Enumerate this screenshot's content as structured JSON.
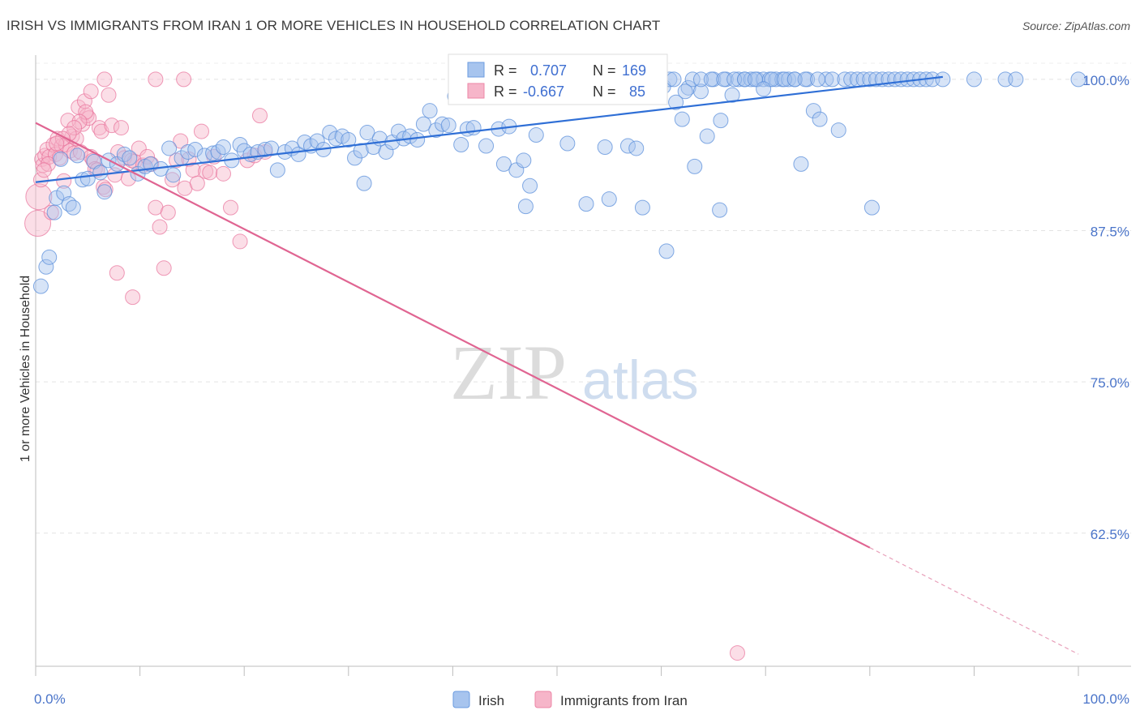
{
  "header": {
    "title": "IRISH VS IMMIGRANTS FROM IRAN 1 OR MORE VEHICLES IN HOUSEHOLD CORRELATION CHART",
    "source": "Source: ZipAtlas.com"
  },
  "watermark": {
    "zip": "ZIP",
    "atlas": "atlas"
  },
  "legend": {
    "rows": [
      {
        "r_label": "R =",
        "r_value": "0.707",
        "n_label": "N =",
        "n_value": "169",
        "color": "#a7c4ee",
        "stroke": "#6b9be0"
      },
      {
        "r_label": "R =",
        "r_value": "-0.667",
        "n_label": "N =",
        "n_value": "85",
        "color": "#f6b5c9",
        "stroke": "#ec86a6"
      }
    ]
  },
  "bottom_legend": {
    "items": [
      {
        "label": "Irish",
        "color": "#a7c4ee"
      },
      {
        "label": "Immigrants from Iran",
        "color": "#f6b5c9"
      }
    ]
  },
  "chart_data": {
    "type": "scatter",
    "ylabel": "1 or more Vehicles in Household",
    "x_tick_labels": [
      "0.0%",
      "100.0%"
    ],
    "y_tick_labels": [
      "100.0%",
      "87.5%",
      "75.0%",
      "62.5%"
    ],
    "y_ticks": [
      100.0,
      87.5,
      75.0,
      62.5
    ],
    "xlim": [
      0,
      100
    ],
    "ylim": [
      51.5,
      102.0
    ],
    "grid": true,
    "colors": {
      "irish": "#5b8fdb",
      "irish_fill": "#a7c4ee",
      "iran": "#e8709a",
      "iran_fill": "#f6b5c9"
    },
    "series": [
      {
        "name": "Irish",
        "trend": {
          "x": [
            0,
            87.0
          ],
          "y": [
            91.5,
            100.2
          ]
        },
        "points": [
          [
            0.5,
            82.9
          ],
          [
            1,
            84.5
          ],
          [
            1.3,
            85.3
          ],
          [
            1.8,
            89.0
          ],
          [
            2,
            90.2
          ],
          [
            2.4,
            93.4
          ],
          [
            2.7,
            90.6
          ],
          [
            3.2,
            89.7
          ],
          [
            3.6,
            89.4
          ],
          [
            4,
            93.7
          ],
          [
            4.5,
            91.7
          ],
          [
            5,
            91.8
          ],
          [
            5.6,
            93.2
          ],
          [
            6.2,
            92.3
          ],
          [
            6.6,
            90.7
          ],
          [
            7,
            93.3
          ],
          [
            7.8,
            93.0
          ],
          [
            8.5,
            93.8
          ],
          [
            9,
            93.5
          ],
          [
            9.8,
            92.2
          ],
          [
            10.5,
            92.8
          ],
          [
            11,
            93.0
          ],
          [
            12,
            92.6
          ],
          [
            12.8,
            94.3
          ],
          [
            13.2,
            92.1
          ],
          [
            14,
            93.5
          ],
          [
            14.6,
            94.0
          ],
          [
            15.3,
            94.2
          ],
          [
            16.2,
            93.7
          ],
          [
            17,
            93.9
          ],
          [
            17.5,
            94.0
          ],
          [
            18,
            94.4
          ],
          [
            18.8,
            93.3
          ],
          [
            19.6,
            94.6
          ],
          [
            20,
            94.1
          ],
          [
            20.6,
            93.8
          ],
          [
            21.3,
            94.0
          ],
          [
            22,
            94.2
          ],
          [
            22.6,
            94.3
          ],
          [
            23.2,
            92.5
          ],
          [
            23.9,
            94.0
          ],
          [
            24.6,
            94.3
          ],
          [
            25.2,
            93.8
          ],
          [
            25.8,
            94.8
          ],
          [
            26.4,
            94.5
          ],
          [
            27,
            94.9
          ],
          [
            27.6,
            94.2
          ],
          [
            28.2,
            95.6
          ],
          [
            28.8,
            95.1
          ],
          [
            29.4,
            95.3
          ],
          [
            30,
            95.0
          ],
          [
            30.6,
            93.5
          ],
          [
            31.2,
            94.1
          ],
          [
            31.8,
            95.6
          ],
          [
            32.4,
            94.4
          ],
          [
            33,
            95.1
          ],
          [
            31.5,
            91.4
          ],
          [
            33.6,
            94.0
          ],
          [
            34.2,
            94.8
          ],
          [
            34.8,
            95.7
          ],
          [
            35.3,
            95.1
          ],
          [
            35.9,
            95.3
          ],
          [
            36.6,
            95.0
          ],
          [
            37.2,
            96.3
          ],
          [
            37.8,
            97.4
          ],
          [
            38.4,
            95.8
          ],
          [
            39,
            96.3
          ],
          [
            39.6,
            96.2
          ],
          [
            40.2,
            98.6
          ],
          [
            40.8,
            94.6
          ],
          [
            41.4,
            95.9
          ],
          [
            42,
            96.0
          ],
          [
            42.6,
            99.5
          ],
          [
            43.2,
            94.5
          ],
          [
            43.8,
            99.1
          ],
          [
            44.4,
            95.9
          ],
          [
            44.9,
            93.0
          ],
          [
            45.4,
            96.1
          ],
          [
            46.1,
            92.5
          ],
          [
            46.8,
            93.3
          ],
          [
            47.4,
            91.2
          ],
          [
            48,
            95.4
          ],
          [
            47,
            89.5
          ],
          [
            48.6,
            100
          ],
          [
            49.2,
            99.5
          ],
          [
            49.8,
            99.7
          ],
          [
            50.3,
            100
          ],
          [
            51,
            94.7
          ],
          [
            51.6,
            99.8
          ],
          [
            52.2,
            100
          ],
          [
            52.8,
            89.7
          ],
          [
            53.4,
            100
          ],
          [
            54,
            99.1
          ],
          [
            54.6,
            94.4
          ],
          [
            55,
            90.1
          ],
          [
            55.6,
            100
          ],
          [
            56.2,
            99.2
          ],
          [
            56.8,
            94.5
          ],
          [
            57.6,
            94.3
          ],
          [
            58.2,
            89.4
          ],
          [
            59,
            100
          ],
          [
            59.6,
            100
          ],
          [
            60.2,
            99.4
          ],
          [
            60.8,
            100
          ],
          [
            61.4,
            98.1
          ],
          [
            62,
            96.7
          ],
          [
            62.6,
            99.3
          ],
          [
            63.2,
            92.8
          ],
          [
            63.8,
            99.0
          ],
          [
            64.4,
            95.3
          ],
          [
            65,
            100
          ],
          [
            65.6,
            89.2
          ],
          [
            66.2,
            100
          ],
          [
            66.8,
            98.7
          ],
          [
            67.4,
            100
          ],
          [
            68,
            100
          ],
          [
            68.6,
            100
          ],
          [
            69.2,
            100
          ],
          [
            69.8,
            100
          ],
          [
            70.4,
            100
          ],
          [
            71,
            100
          ],
          [
            71.6,
            100
          ],
          [
            72.2,
            100
          ],
          [
            72.8,
            100
          ],
          [
            73.4,
            93.0
          ],
          [
            74,
            100
          ],
          [
            74.6,
            97.4
          ],
          [
            75.2,
            96.7
          ],
          [
            75.8,
            100
          ],
          [
            76.4,
            100
          ],
          [
            77,
            95.8
          ],
          [
            77.6,
            100
          ],
          [
            78.2,
            100
          ],
          [
            78.8,
            100
          ],
          [
            79.4,
            100
          ],
          [
            80,
            100
          ],
          [
            80.6,
            100
          ],
          [
            81.2,
            100
          ],
          [
            81.8,
            100
          ],
          [
            82.4,
            100
          ],
          [
            80.2,
            89.4
          ],
          [
            83,
            100
          ],
          [
            83.6,
            100
          ],
          [
            84.2,
            100
          ],
          [
            84.8,
            100
          ],
          [
            85.4,
            100
          ],
          [
            86,
            100
          ],
          [
            87,
            100
          ],
          [
            90,
            100
          ],
          [
            93,
            100
          ],
          [
            94,
            100
          ],
          [
            100,
            100
          ],
          [
            70.6,
            100
          ],
          [
            71.8,
            100
          ],
          [
            72.8,
            100
          ],
          [
            73.8,
            100
          ],
          [
            75.0,
            100
          ],
          [
            61.2,
            100
          ],
          [
            57.2,
            100
          ],
          [
            55.8,
            100
          ],
          [
            53.8,
            100
          ],
          [
            54.6,
            100
          ],
          [
            56.6,
            100
          ],
          [
            49.6,
            100
          ],
          [
            50.6,
            100
          ],
          [
            51.6,
            100
          ],
          [
            58,
            100
          ],
          [
            59.2,
            100
          ],
          [
            63,
            100
          ],
          [
            63.8,
            100
          ],
          [
            64.8,
            100
          ],
          [
            66,
            100
          ],
          [
            67,
            100
          ],
          [
            68,
            100
          ],
          [
            69,
            100
          ],
          [
            62.3,
            99
          ],
          [
            60.5,
            85.8
          ],
          [
            65.7,
            96.6
          ],
          [
            69.8,
            99.2
          ]
        ]
      },
      {
        "name": "Immigrants from Iran",
        "trend": {
          "x": [
            0,
            80.0
          ],
          "y": [
            96.4,
            61.3
          ]
        },
        "trend_ext": {
          "x": [
            80.0,
            100
          ],
          "y": [
            61.3,
            52.5
          ]
        },
        "points": [
          [
            0.2,
            88.1
          ],
          [
            0.3,
            90.3
          ],
          [
            0.5,
            91.7
          ],
          [
            0.6,
            93.4
          ],
          [
            0.7,
            92.9
          ],
          [
            0.9,
            93.7
          ],
          [
            1.1,
            94.2
          ],
          [
            1.3,
            93.6
          ],
          [
            1.5,
            89.0
          ],
          [
            1.7,
            94.6
          ],
          [
            1.9,
            93.8
          ],
          [
            2.1,
            95.1
          ],
          [
            2.3,
            93.5
          ],
          [
            2.5,
            94.5
          ],
          [
            2.7,
            91.6
          ],
          [
            2.9,
            94.6
          ],
          [
            3.1,
            96.6
          ],
          [
            3.3,
            94.1
          ],
          [
            3.5,
            95.3
          ],
          [
            3.7,
            93.9
          ],
          [
            3.9,
            95.1
          ],
          [
            4.1,
            97.7
          ],
          [
            4.3,
            94.0
          ],
          [
            4.5,
            96.3
          ],
          [
            4.7,
            98.2
          ],
          [
            4.9,
            97.0
          ],
          [
            5.1,
            96.8
          ],
          [
            5.3,
            93.6
          ],
          [
            5.5,
            93.3
          ],
          [
            5.7,
            92.6
          ],
          [
            5.9,
            92.5
          ],
          [
            6.1,
            96.0
          ],
          [
            6.3,
            95.7
          ],
          [
            6.5,
            91.1
          ],
          [
            6.7,
            90.9
          ],
          [
            7.0,
            98.7
          ],
          [
            7.3,
            96.2
          ],
          [
            7.6,
            92.1
          ],
          [
            7.9,
            94.0
          ],
          [
            8.2,
            96.0
          ],
          [
            8.5,
            93.5
          ],
          [
            8.9,
            91.8
          ],
          [
            9.2,
            93.3
          ],
          [
            9.5,
            93.2
          ],
          [
            9.9,
            94.3
          ],
          [
            10.3,
            92.9
          ],
          [
            10.7,
            93.6
          ],
          [
            11.1,
            93.0
          ],
          [
            11.5,
            89.4
          ],
          [
            11.9,
            87.8
          ],
          [
            12.3,
            84.4
          ],
          [
            12.7,
            89.0
          ],
          [
            13.1,
            91.7
          ],
          [
            13.5,
            93.3
          ],
          [
            13.9,
            94.9
          ],
          [
            14.3,
            91.0
          ],
          [
            14.7,
            93.4
          ],
          [
            15.1,
            92.5
          ],
          [
            15.5,
            91.4
          ],
          [
            15.9,
            95.7
          ],
          [
            16.3,
            92.4
          ],
          [
            16.7,
            92.3
          ],
          [
            17.1,
            93.6
          ],
          [
            18.0,
            92.2
          ],
          [
            18.7,
            89.4
          ],
          [
            19.6,
            86.6
          ],
          [
            20.3,
            93.3
          ],
          [
            21.0,
            93.7
          ],
          [
            21.5,
            97.0
          ],
          [
            22.0,
            94.0
          ],
          [
            7.8,
            84.0
          ],
          [
            9.3,
            82.0
          ],
          [
            11.5,
            100
          ],
          [
            14.2,
            100
          ],
          [
            6.6,
            100
          ],
          [
            5.3,
            99.0
          ],
          [
            4.8,
            97.3
          ],
          [
            4.2,
            96.5
          ],
          [
            3.7,
            96.0
          ],
          [
            3.2,
            95.5
          ],
          [
            2.6,
            95.1
          ],
          [
            2.0,
            94.7
          ],
          [
            1.2,
            93.0
          ],
          [
            0.8,
            92.5
          ],
          [
            67.3,
            52.6
          ]
        ]
      }
    ]
  }
}
